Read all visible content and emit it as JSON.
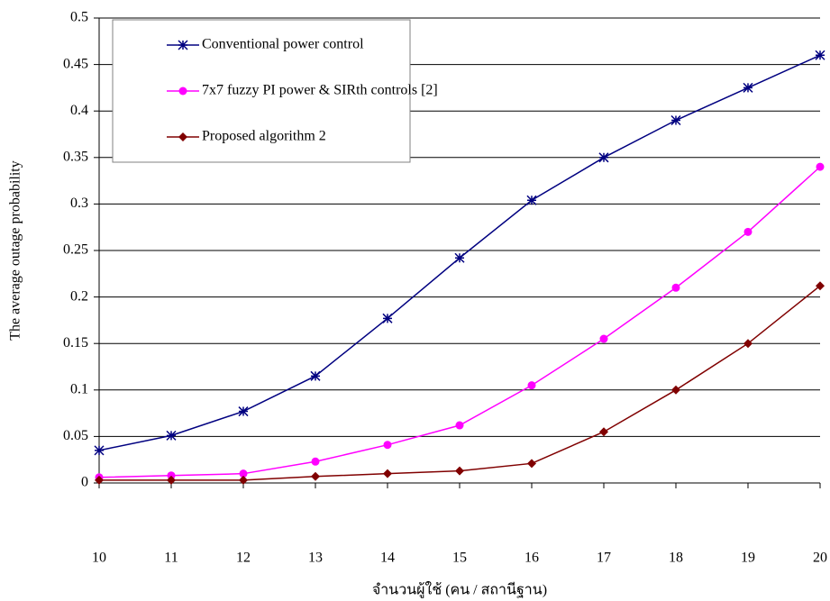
{
  "chart_data": {
    "type": "line",
    "x_label": "จำนวนผู้ใช้ (คน / สถานีฐาน)",
    "y_label": "The average outage probability",
    "x": [
      10,
      11,
      12,
      13,
      14,
      15,
      16,
      17,
      18,
      19,
      20
    ],
    "xlim": [
      10,
      20
    ],
    "xticks": [
      10,
      11,
      12,
      13,
      14,
      15,
      16,
      17,
      18,
      19,
      20
    ],
    "ylim": [
      0,
      0.5
    ],
    "yticks": [
      0,
      0.05,
      0.1,
      0.15,
      0.2,
      0.25,
      0.3,
      0.35,
      0.4,
      0.45,
      0.5
    ],
    "grid": true,
    "legend_position": "upper left",
    "series": [
      {
        "name": "Conventional power control",
        "color": "#000080",
        "marker": "star",
        "values": [
          0.035,
          0.051,
          0.077,
          0.115,
          0.177,
          0.242,
          0.304,
          0.35,
          0.39,
          0.425,
          0.46
        ]
      },
      {
        "name": "7x7  fuzzy PI power & SIRth controls  [2]",
        "color": "#ff00ff",
        "marker": "circle",
        "values": [
          0.006,
          0.008,
          0.01,
          0.023,
          0.041,
          0.062,
          0.105,
          0.155,
          0.21,
          0.27,
          0.34
        ]
      },
      {
        "name": "Proposed algorithm  2",
        "color": "#800000",
        "marker": "diamond",
        "values": [
          0.003,
          0.003,
          0.003,
          0.007,
          0.01,
          0.013,
          0.021,
          0.055,
          0.1,
          0.15,
          0.212
        ]
      }
    ]
  }
}
